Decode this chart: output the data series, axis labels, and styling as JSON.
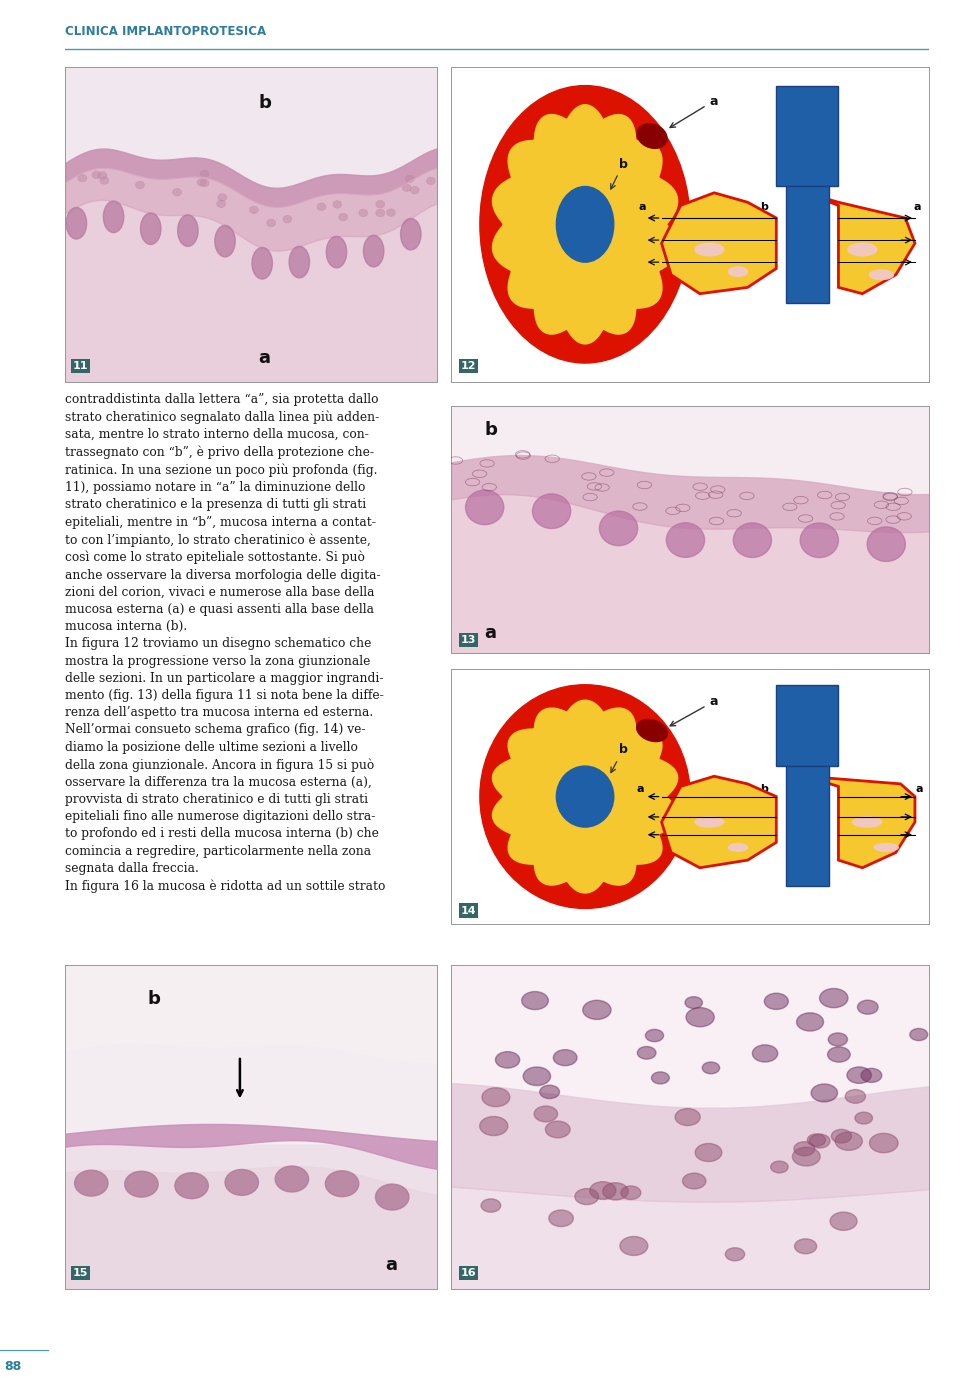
{
  "header_text": "CLINICA IMPLANTOPROTESICA",
  "header_color": "#2e7d9e",
  "header_line_color": "#4a9ab5",
  "page_number": "88",
  "page_bg": "#ffffff",
  "body_text_col1": "contraddistinta dalla lettera “a”, sia protetta dallo\nstrato cheratinico segnalato dalla linea più adden-\nsata, mentre lo strato interno della mucosa, con-\ntrassegnato con “b”, è privo della protezione che-\nratinica. In una sezione un poco più profonda (fig.\n11), possiamo notare in “a” la diminuzione dello\nstrato cheratinico e la presenza di tutti gli strati\nepiteliali, mentre in “b”, mucosa interna a contat-\nto con l’impianto, lo strato cheratinico è assente,\ncosì come lo strato epiteliale sottostante. Si può\nanche osservare la diversa morfologia delle digita-\nzioni del corion, vivaci e numerose alla base della\nmucosa esterna (a) e quasi assenti alla base della\nmucosa interna (b).\nIn figura 12 troviamo un disegno schematico che\nmostra la progressione verso la zona giunzionale\ndelle sezioni. In un particolare a maggior ingrandi-\nmento (fig. 13) della figura 11 si nota bene la diffe-\nrenza dell’aspetto tra mucosa interna ed esterna.\nNell’ormai consueto schema grafico (fig. 14) ve-\ndiamo la posizione delle ultime sezioni a livello\ndella zona giunzionale. Ancora in figura 15 si può\nosservare la differenza tra la mucosa esterna (a),\nprovvista di strato cheratinico e di tutti gli strati\nepiteliali fino alle numerose digitazioni dello stra-\nto profondo ed i resti della mucosa interna (b) che\ncomincia a regredire, particolarmente nella zona\nsegnata dalla freccia.\nIn figura 16 la mucosa è ridotta ad un sottile strato",
  "body_fontsize": 8.8,
  "body_text_color": "#1a1a1a",
  "diagram_red": "#dd1100",
  "diagram_yellow": "#f5c830",
  "diagram_blue": "#1e5fa8",
  "diagram_dark_red": "#bb0000",
  "fig11_label": "11",
  "fig12_label": "12",
  "fig13_label": "13",
  "fig14_label": "14",
  "fig15_label": "15",
  "fig16_label": "16",
  "label_bg": "#2a6060",
  "img_border": "#999999"
}
